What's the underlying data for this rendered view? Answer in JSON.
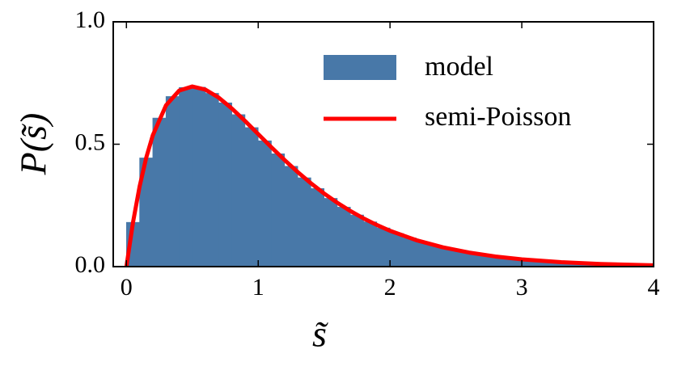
{
  "chart_data": {
    "type": "histogram",
    "xlabel": "s̃",
    "ylabel": "P(s̃)",
    "name": "model",
    "color": "#4878a8",
    "bins": [
      0,
      0.1,
      0.2,
      0.3,
      0.4,
      0.5,
      0.6,
      0.7,
      0.8,
      0.9,
      1.0,
      1.1,
      1.2,
      1.3,
      1.4,
      1.5,
      1.6,
      1.7,
      1.8,
      1.9,
      2.0,
      2.1,
      2.2,
      2.3,
      2.4,
      2.5,
      2.6,
      2.7,
      2.8,
      2.9,
      3.0,
      3.1,
      3.2,
      3.3,
      3.4,
      3.5,
      3.6,
      3.7,
      3.8,
      3.9,
      4.0
    ],
    "counts": [
      0.181,
      0.444,
      0.607,
      0.695,
      0.732,
      0.733,
      0.708,
      0.669,
      0.621,
      0.568,
      0.514,
      0.461,
      0.41,
      0.363,
      0.319,
      0.279,
      0.243,
      0.211,
      0.183,
      0.158,
      0.136,
      0.117,
      0.1,
      0.085,
      0.073,
      0.062,
      0.053,
      0.045,
      0.038,
      0.032,
      0.027,
      0.023,
      0.02,
      0.016,
      0.014,
      0.012,
      0.01,
      0.008,
      0.007,
      0.006
    ],
    "series": [
      {
        "name": "semi-Poisson",
        "color": "#ff0000",
        "x": [
          0,
          0.05,
          0.1,
          0.15,
          0.2,
          0.3,
          0.4,
          0.5,
          0.6,
          0.7,
          0.8,
          0.9,
          1.0,
          1.1,
          1.2,
          1.3,
          1.4,
          1.5,
          1.6,
          1.7,
          1.8,
          1.9,
          2.0,
          2.2,
          2.4,
          2.6,
          2.8,
          3.0,
          3.3,
          3.6,
          4.0
        ],
        "values": [
          0,
          0.181,
          0.3275,
          0.4445,
          0.5363,
          0.6586,
          0.7189,
          0.7358,
          0.7229,
          0.6905,
          0.646,
          0.5951,
          0.5413,
          0.4875,
          0.4354,
          0.3862,
          0.3405,
          0.2987,
          0.2609,
          0.227,
          0.1968,
          0.1702,
          0.1465,
          0.108,
          0.079,
          0.0574,
          0.0414,
          0.0297,
          0.018,
          0.0108,
          0.0054
        ]
      }
    ],
    "xlim": [
      -0.1,
      4
    ],
    "ylim": [
      0,
      1
    ],
    "xticks": [
      0,
      1,
      2,
      3,
      4
    ],
    "yticks": [
      {
        "value": 0,
        "label": "0.0"
      },
      0.5,
      {
        "value": 1,
        "label": "1.0"
      }
    ],
    "legend": "upper right",
    "grid": false
  }
}
